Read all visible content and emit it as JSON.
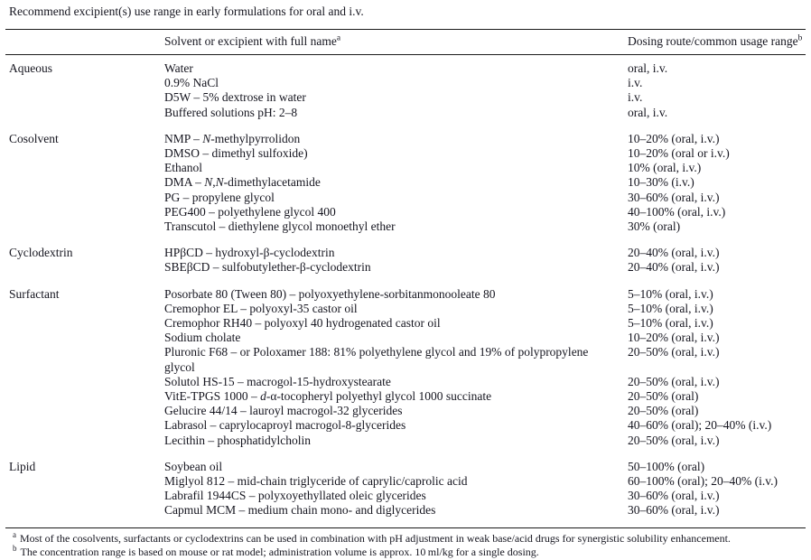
{
  "title": "Recommend excipient(s) use range in early formulations for oral and i.v.",
  "columns": {
    "category": {
      "label": ""
    },
    "excipient": {
      "label": "Solvent or excipient with full name",
      "sup": "a"
    },
    "dosing": {
      "label": "Dosing route/common usage range",
      "sup": "b"
    }
  },
  "sections": [
    {
      "category": "Aqueous",
      "rows": [
        {
          "name": "Water",
          "dose": "oral, i.v."
        },
        {
          "name": "0.9% NaCl",
          "dose": "i.v."
        },
        {
          "name": "D5W – 5% dextrose in water",
          "dose": "i.v."
        },
        {
          "name": "Buffered solutions pH: 2–8",
          "dose": "oral, i.v."
        }
      ]
    },
    {
      "category": "Cosolvent",
      "rows": [
        {
          "name": "NMP – *N*-methylpyrrolidon",
          "dose": "10–20% (oral, i.v.)"
        },
        {
          "name": "DMSO – dimethyl sulfoxide)",
          "dose": "10–20% (oral or i.v.)"
        },
        {
          "name": "Ethanol",
          "dose": "10% (oral, i.v.)"
        },
        {
          "name": "DMA – *N*,*N*-dimethylacetamide",
          "dose": "10–30% (i.v.)"
        },
        {
          "name": "PG – propylene glycol",
          "dose": "30–60% (oral, i.v.)"
        },
        {
          "name": "PEG400 – polyethylene glycol 400",
          "dose": "40–100% (oral, i.v.)"
        },
        {
          "name": "Transcutol – diethylene glycol monoethyl ether",
          "dose": "30% (oral)"
        }
      ]
    },
    {
      "category": "Cyclodextrin",
      "rows": [
        {
          "name": "HPβCD – hydroxyl-β-cyclodextrin",
          "dose": "20–40% (oral, i.v.)"
        },
        {
          "name": "SBEβCD – sulfobutylether-β-cyclodextrin",
          "dose": "20–40% (oral, i.v.)"
        }
      ]
    },
    {
      "category": "Surfactant",
      "rows": [
        {
          "name": "Posorbate 80 (Tween 80) – polyoxyethylene-sorbitanmonooleate 80",
          "dose": "5–10% (oral, i.v.)"
        },
        {
          "name": "Cremophor EL – polyoxyl-35 castor oil",
          "dose": "5–10% (oral, i.v.)"
        },
        {
          "name": "Cremophor RH40 – polyoxyl 40 hydrogenated castor oil",
          "dose": "5–10% (oral, i.v.)"
        },
        {
          "name": "Sodium cholate",
          "dose": "10–20% (oral, i.v.)"
        },
        {
          "name": "Pluronic F68 – or Poloxamer 188: 81% polyethylene glycol and 19% of polypropylene glycol",
          "dose": "20–50% (oral, i.v.)",
          "wrap_lines": 2
        },
        {
          "name": "Solutol HS-15 – macrogol-15-hydroxystearate",
          "dose": "20–50% (oral, i.v.)"
        },
        {
          "name": "VitE-TPGS 1000 – *d*-α-tocopheryl polyethyl glycol 1000 succinate",
          "dose": "20–50% (oral)"
        },
        {
          "name": "Gelucire 44/14 – lauroyl macrogol-32 glycerides",
          "dose": "20–50% (oral)"
        },
        {
          "name": "Labrasol – caprylocaproyl macrogol-8-glycerides",
          "dose": "40–60% (oral); 20–40% (i.v.)"
        },
        {
          "name": "Lecithin – phosphatidylcholin",
          "dose": "20–50% (oral, i.v.)"
        }
      ]
    },
    {
      "category": "Lipid",
      "rows": [
        {
          "name": "Soybean oil",
          "dose": "50–100% (oral)"
        },
        {
          "name": "Miglyol 812 – mid-chain triglyceride of caprylic/caprolic acid",
          "dose": "60–100% (oral); 20–40% (i.v.)"
        },
        {
          "name": "Labrafil 1944CS – polyxoyethyllated oleic glycerides",
          "dose": "30–60% (oral, i.v.)"
        },
        {
          "name": "Capmul MCM – medium chain mono- and diglycerides",
          "dose": "30–60% (oral, i.v.)"
        }
      ]
    }
  ],
  "footnotes": [
    {
      "marker": "a",
      "text": "Most of the cosolvents, surfactants or cyclodextrins can be used in combination with pH adjustment in weak base/acid drugs for synergistic solubility enhancement."
    },
    {
      "marker": "b",
      "text": "The concentration range is based on mouse or rat model; administration volume is approx. 10 ml/kg for a single dosing."
    }
  ],
  "colors": {
    "text": "#15151f",
    "rule": "#1a1a1a",
    "background": "#ffffff"
  }
}
